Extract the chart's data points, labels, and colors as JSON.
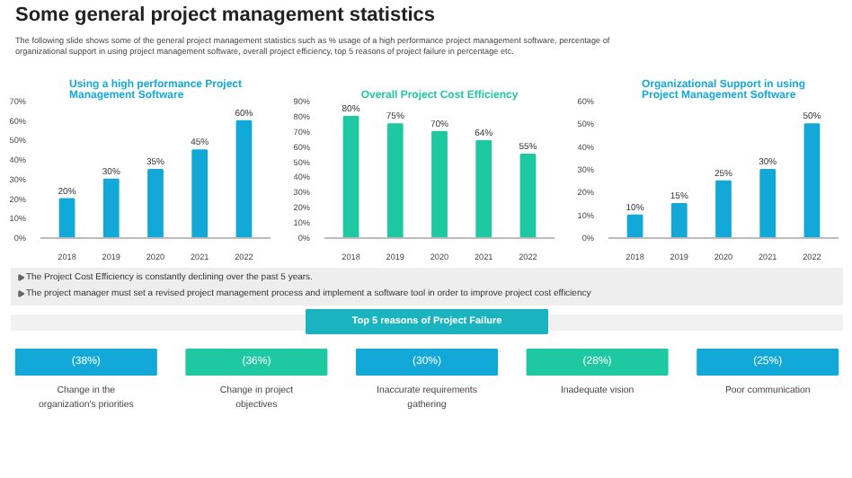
{
  "chart_data": [
    {
      "type": "other",
      "title": "Some general project management statistics",
      "subtitle": "The following slide shows some of the general project management statistics such as % usage of a high performance project management software, percentage of organizational support in using project management software, overall project efficiency, top 5 reasons of project failure in percentage etc."
    },
    {
      "type": "bar",
      "title": "Using a high performance Project Management Software",
      "categories": [
        "2018",
        "2019",
        "2020",
        "2021",
        "2022"
      ],
      "values": [
        20,
        30,
        35,
        45,
        60
      ],
      "value_labels": [
        "20%",
        "30%",
        "35%",
        "45%",
        "60%"
      ],
      "color": "#12a8d8",
      "ylim": [
        0,
        70
      ],
      "yticks": [
        {
          "value": 0,
          "label": "0%"
        },
        {
          "value": 10,
          "label": "10%"
        },
        {
          "value": 20,
          "label": "20%"
        },
        {
          "value": 30,
          "label": "30%"
        },
        {
          "value": 40,
          "label": "40%"
        },
        {
          "value": 50,
          "label": "50%"
        },
        {
          "value": 60,
          "label": "60%"
        },
        {
          "value": 70,
          "label": "70%"
        }
      ]
    },
    {
      "type": "bar",
      "title": "Overall Project Cost Efficiency",
      "categories": [
        "2018",
        "2019",
        "2020",
        "2021",
        "2022"
      ],
      "values": [
        80,
        75,
        70,
        64,
        55
      ],
      "value_labels": [
        "80%",
        "75%",
        "70%",
        "64%",
        "55%"
      ],
      "color": "#1ec8a0",
      "ylim": [
        0,
        90
      ],
      "yticks": [
        {
          "value": 0,
          "label": "0%"
        },
        {
          "value": 10,
          "label": "10%"
        },
        {
          "value": 20,
          "label": "20%"
        },
        {
          "value": 30,
          "label": "30%"
        },
        {
          "value": 40,
          "label": "40%"
        },
        {
          "value": 50,
          "label": "50%"
        },
        {
          "value": 60,
          "label": "60%"
        },
        {
          "value": 70,
          "label": "70%"
        },
        {
          "value": 80,
          "label": "80%"
        },
        {
          "value": 90,
          "label": "90%"
        }
      ]
    },
    {
      "type": "bar",
      "title": "Organizational Support in using Project Management Software",
      "categories": [
        "2018",
        "2019",
        "2020",
        "2021",
        "2022"
      ],
      "values": [
        10,
        15,
        25,
        30,
        50
      ],
      "value_labels": [
        "10%",
        "15%",
        "25%",
        "30%",
        "50%"
      ],
      "color": "#12a8d8",
      "ylim": [
        0,
        60
      ],
      "yticks": [
        {
          "value": 0,
          "label": "0%"
        },
        {
          "value": 10,
          "label": "10%"
        },
        {
          "value": 20,
          "label": "20%"
        },
        {
          "value": 30,
          "label": "30%"
        },
        {
          "value": 40,
          "label": "40%"
        },
        {
          "value": 50,
          "label": "50%"
        },
        {
          "value": 60,
          "label": "60%"
        }
      ]
    },
    {
      "type": "other",
      "colors": [
        "#12a8d8",
        "#1ec8a0",
        "#12a8d8",
        "#1ec8a0",
        "#12a8d8"
      ],
      "annotations": [
        "The Project Cost Efficiency is constantly declining over the past 5 years.",
        "The project manager must set a revised project management process and implement a software tool in order to improve project cost efficiency",
        "Top 5 reasons of Project Failure",
        "(38%)",
        "Change in the organization's priorities",
        "(36%)",
        "Change in project objectives",
        "(30%)",
        "Inaccurate requirements gathering",
        "(28%)",
        "Inadequate vision",
        "(25%)",
        "Poor communication"
      ]
    }
  ]
}
